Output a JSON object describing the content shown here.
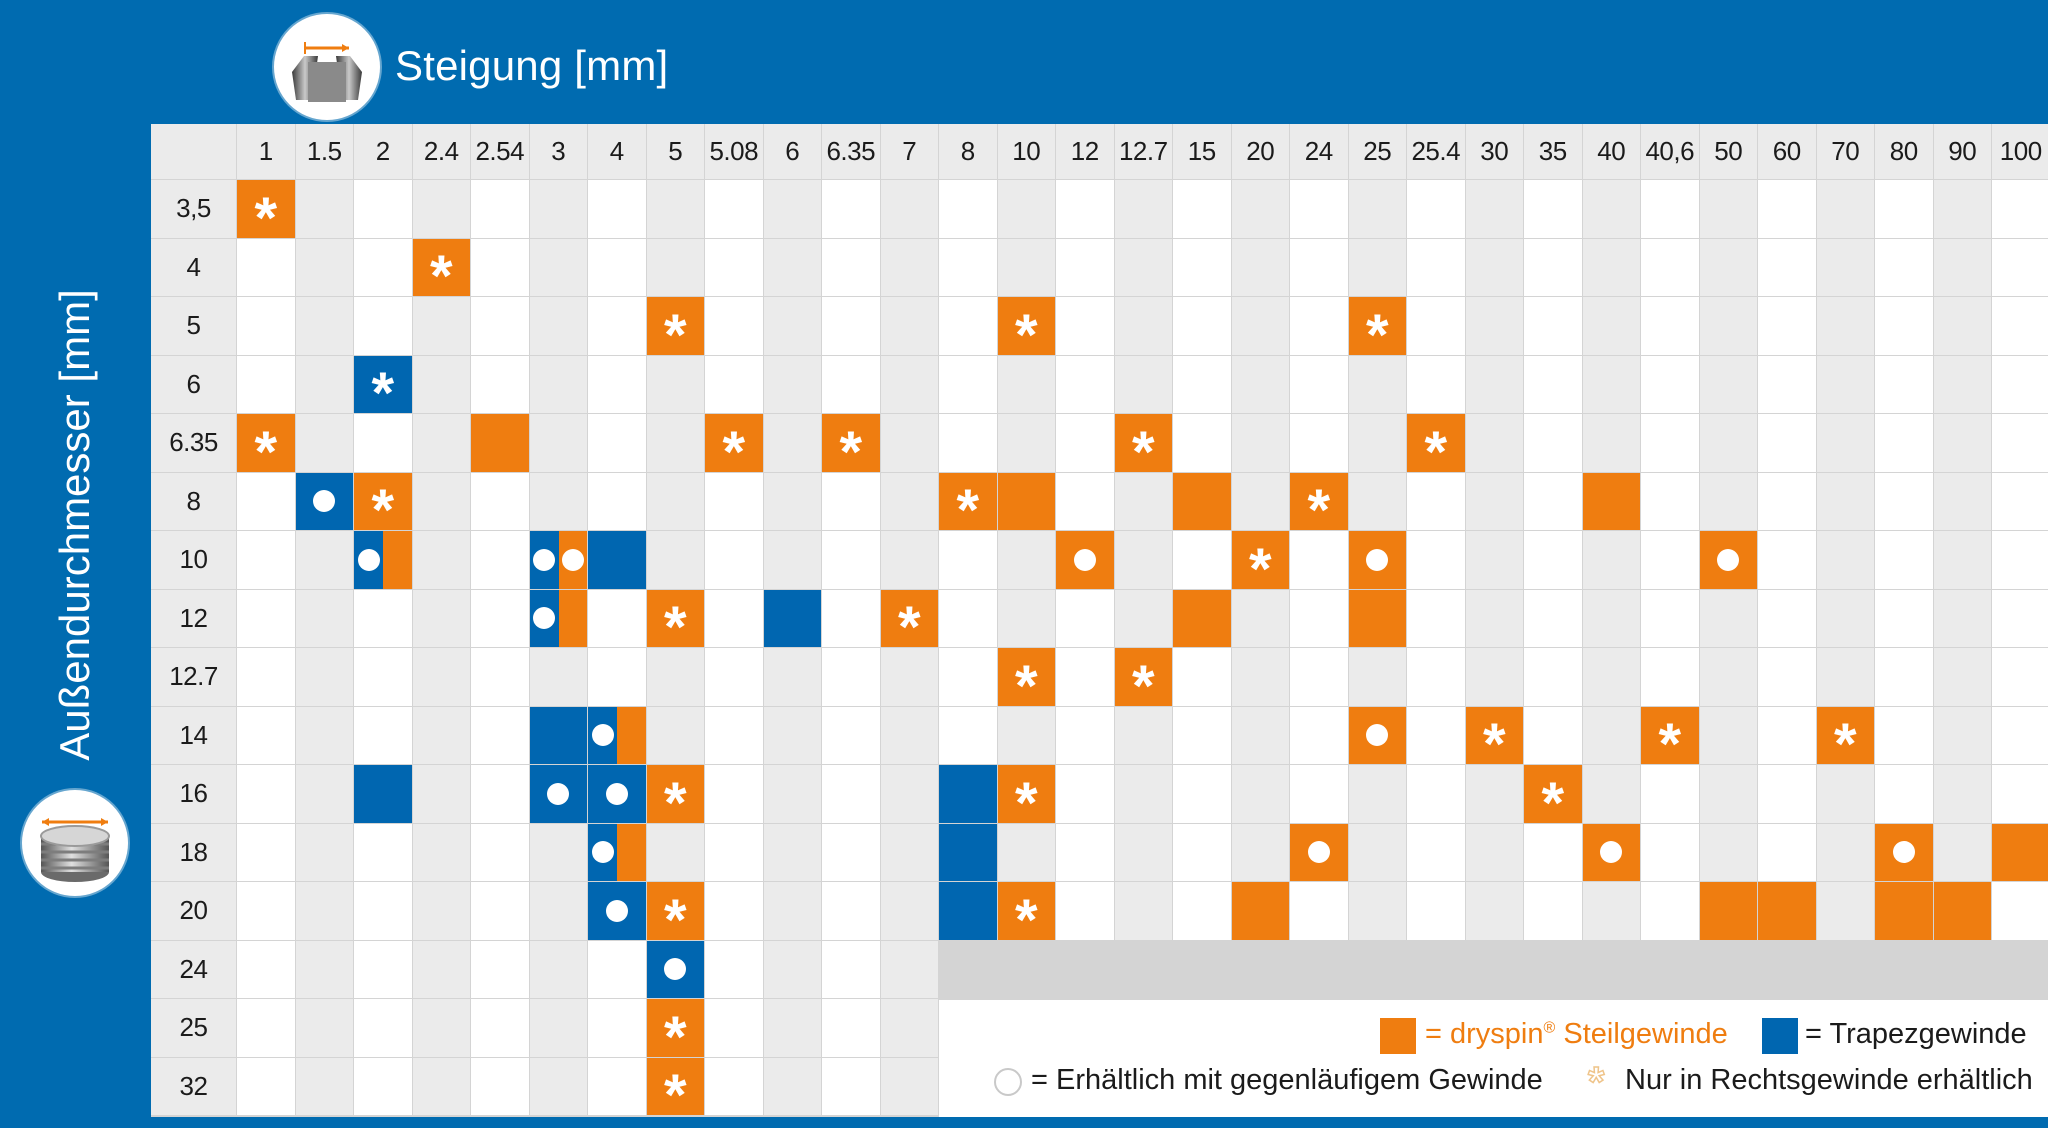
{
  "header": {
    "title": "Steigung [mm]"
  },
  "y_axis": {
    "label": "Außendurchmesser [mm]"
  },
  "icons": {
    "pitch": "thread-pitch-icon",
    "diameter": "outer-diameter-icon"
  },
  "colors": {
    "background": "#006bb0",
    "orange": "#ef7d10",
    "blue": "#0066b0",
    "white_cell": "#ffffff",
    "gray_cell": "#ebebeb"
  },
  "pitches": [
    "1",
    "1.5",
    "2",
    "2.4",
    "2.54",
    "3",
    "4",
    "5",
    "5.08",
    "6",
    "6.35",
    "7",
    "8",
    "10",
    "12",
    "12.7",
    "15",
    "20",
    "24",
    "25",
    "25.4",
    "30",
    "35",
    "40",
    "40,6",
    "50",
    "60",
    "70",
    "80",
    "90",
    "100"
  ],
  "diameters": [
    "3,5",
    "4",
    "5",
    "6",
    "6.35",
    "8",
    "10",
    "12",
    "12.7",
    "14",
    "16",
    "18",
    "20",
    "24",
    "25",
    "32"
  ],
  "cells": [
    {
      "d": "3,5",
      "p": "1",
      "fill": "o",
      "mark": "star"
    },
    {
      "d": "4",
      "p": "2.4",
      "fill": "o",
      "mark": "star"
    },
    {
      "d": "5",
      "p": "5",
      "fill": "o",
      "mark": "star"
    },
    {
      "d": "5",
      "p": "10",
      "fill": "o",
      "mark": "star"
    },
    {
      "d": "5",
      "p": "25",
      "fill": "o",
      "mark": "star"
    },
    {
      "d": "6",
      "p": "2",
      "fill": "b",
      "mark": "star"
    },
    {
      "d": "6.35",
      "p": "1",
      "fill": "o",
      "mark": "star"
    },
    {
      "d": "6.35",
      "p": "2.54",
      "fill": "o",
      "mark": ""
    },
    {
      "d": "6.35",
      "p": "5.08",
      "fill": "o",
      "mark": "star"
    },
    {
      "d": "6.35",
      "p": "6.35",
      "fill": "o",
      "mark": "star"
    },
    {
      "d": "6.35",
      "p": "12.7",
      "fill": "o",
      "mark": "star"
    },
    {
      "d": "6.35",
      "p": "25.4",
      "fill": "o",
      "mark": "star"
    },
    {
      "d": "8",
      "p": "1.5",
      "fill": "b",
      "mark": "dot"
    },
    {
      "d": "8",
      "p": "2",
      "fill": "o",
      "mark": "star"
    },
    {
      "d": "8",
      "p": "8",
      "fill": "o",
      "mark": "star"
    },
    {
      "d": "8",
      "p": "10",
      "fill": "o",
      "mark": ""
    },
    {
      "d": "8",
      "p": "15",
      "fill": "o",
      "mark": ""
    },
    {
      "d": "8",
      "p": "24",
      "fill": "o",
      "mark": "star"
    },
    {
      "d": "8",
      "p": "40",
      "fill": "o",
      "mark": ""
    },
    {
      "d": "10",
      "p": "2",
      "fill": "b|o",
      "mark": "dot"
    },
    {
      "d": "10",
      "p": "3",
      "fill": "b|o",
      "mark": "dot dot"
    },
    {
      "d": "10",
      "p": "4",
      "fill": "b",
      "mark": ""
    },
    {
      "d": "10",
      "p": "12",
      "fill": "o",
      "mark": "dot"
    },
    {
      "d": "10",
      "p": "20",
      "fill": "o",
      "mark": "star"
    },
    {
      "d": "10",
      "p": "25",
      "fill": "o",
      "mark": "dot"
    },
    {
      "d": "10",
      "p": "50",
      "fill": "o",
      "mark": "dot"
    },
    {
      "d": "12",
      "p": "3",
      "fill": "b|o",
      "mark": "dot"
    },
    {
      "d": "12",
      "p": "5",
      "fill": "o",
      "mark": "star"
    },
    {
      "d": "12",
      "p": "6",
      "fill": "b",
      "mark": ""
    },
    {
      "d": "12",
      "p": "7",
      "fill": "o",
      "mark": "star"
    },
    {
      "d": "12",
      "p": "15",
      "fill": "o",
      "mark": ""
    },
    {
      "d": "12",
      "p": "25",
      "fill": "o",
      "mark": ""
    },
    {
      "d": "12.7",
      "p": "10",
      "fill": "o",
      "mark": "star"
    },
    {
      "d": "12.7",
      "p": "12.7",
      "fill": "o",
      "mark": "star"
    },
    {
      "d": "14",
      "p": "3",
      "fill": "b",
      "mark": ""
    },
    {
      "d": "14",
      "p": "4",
      "fill": "b|o",
      "mark": "dot"
    },
    {
      "d": "14",
      "p": "25",
      "fill": "o",
      "mark": "dot"
    },
    {
      "d": "14",
      "p": "30",
      "fill": "o",
      "mark": "star"
    },
    {
      "d": "14",
      "p": "40,6",
      "fill": "o",
      "mark": "star"
    },
    {
      "d": "14",
      "p": "70",
      "fill": "o",
      "mark": "star"
    },
    {
      "d": "16",
      "p": "2",
      "fill": "b",
      "mark": ""
    },
    {
      "d": "16",
      "p": "3",
      "fill": "b",
      "mark": "dot"
    },
    {
      "d": "16",
      "p": "4",
      "fill": "b",
      "mark": "dot"
    },
    {
      "d": "16",
      "p": "5",
      "fill": "o",
      "mark": "star"
    },
    {
      "d": "16",
      "p": "8",
      "fill": "b",
      "mark": ""
    },
    {
      "d": "16",
      "p": "10",
      "fill": "o",
      "mark": "star"
    },
    {
      "d": "16",
      "p": "35",
      "fill": "o",
      "mark": "star"
    },
    {
      "d": "18",
      "p": "4",
      "fill": "b|o",
      "mark": "dot"
    },
    {
      "d": "18",
      "p": "8",
      "fill": "b",
      "mark": ""
    },
    {
      "d": "18",
      "p": "24",
      "fill": "o",
      "mark": "dot"
    },
    {
      "d": "18",
      "p": "40",
      "fill": "o",
      "mark": "dot"
    },
    {
      "d": "18",
      "p": "80",
      "fill": "o",
      "mark": "dot"
    },
    {
      "d": "18",
      "p": "100",
      "fill": "o",
      "mark": ""
    },
    {
      "d": "20",
      "p": "4",
      "fill": "b",
      "mark": "dot"
    },
    {
      "d": "20",
      "p": "5",
      "fill": "o",
      "mark": "star"
    },
    {
      "d": "20",
      "p": "8",
      "fill": "b",
      "mark": ""
    },
    {
      "d": "20",
      "p": "10",
      "fill": "o",
      "mark": "star"
    },
    {
      "d": "20",
      "p": "20",
      "fill": "o",
      "mark": ""
    },
    {
      "d": "20",
      "p": "50",
      "fill": "o",
      "mark": ""
    },
    {
      "d": "20",
      "p": "60",
      "fill": "o",
      "mark": ""
    },
    {
      "d": "20",
      "p": "80",
      "fill": "o",
      "mark": ""
    },
    {
      "d": "20",
      "p": "90",
      "fill": "o",
      "mark": ""
    },
    {
      "d": "24",
      "p": "5",
      "fill": "b",
      "mark": "dot"
    },
    {
      "d": "25",
      "p": "5",
      "fill": "o",
      "mark": "star"
    },
    {
      "d": "32",
      "p": "5",
      "fill": "o",
      "mark": "star"
    }
  ],
  "legend": {
    "orange_prefix": "= ",
    "orange_brand": "dryspin",
    "orange_reg": "®",
    "orange_rest": " Steilgewinde",
    "blue": "= Trapezgewinde",
    "circle": "= Erhältlich mit gegenläufigem Gewinde",
    "star": "Nur in Rechtsgewinde erhältlich"
  }
}
